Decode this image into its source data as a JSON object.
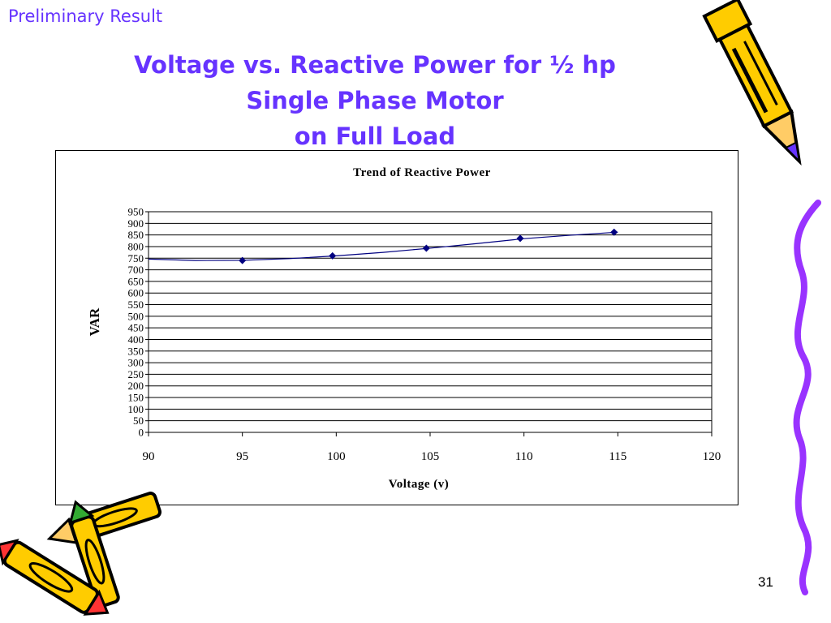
{
  "section_label": "Preliminary Result",
  "slide_title": {
    "line1": "Voltage vs. Reactive Power for ½ hp",
    "line2": "Single Phase Motor",
    "line3": "on Full Load"
  },
  "page_number": "31",
  "icons": [
    "pencil-icon",
    "crayons-icon",
    "squiggle-icon"
  ],
  "colors": {
    "title": "#6633ff",
    "series": "#000080",
    "squiggle": "#9933ff"
  },
  "chart_data": {
    "type": "scatter",
    "title": "Trend of Reactive Power",
    "xlabel": "Voltage (v)",
    "ylabel": "VAR",
    "xlim": [
      90,
      120
    ],
    "ylim": [
      0,
      950
    ],
    "xticks": [
      90,
      95,
      100,
      105,
      110,
      115,
      120
    ],
    "yticks": [
      0,
      50,
      100,
      150,
      200,
      250,
      300,
      350,
      400,
      450,
      500,
      550,
      600,
      650,
      700,
      750,
      800,
      850,
      900,
      950
    ],
    "grid": true,
    "legend": "none",
    "series": [
      {
        "x": [
          95,
          99.8,
          104.8,
          109.8,
          114.8
        ],
        "y": [
          740,
          760,
          793,
          835,
          862
        ]
      }
    ],
    "trendline": {
      "x": [
        90,
        92.5,
        95,
        97.5,
        100,
        102.5,
        105,
        107.5,
        110,
        112.5,
        115
      ],
      "y": [
        746,
        740,
        741,
        748,
        760,
        775,
        793,
        813,
        834,
        849,
        862
      ]
    }
  }
}
